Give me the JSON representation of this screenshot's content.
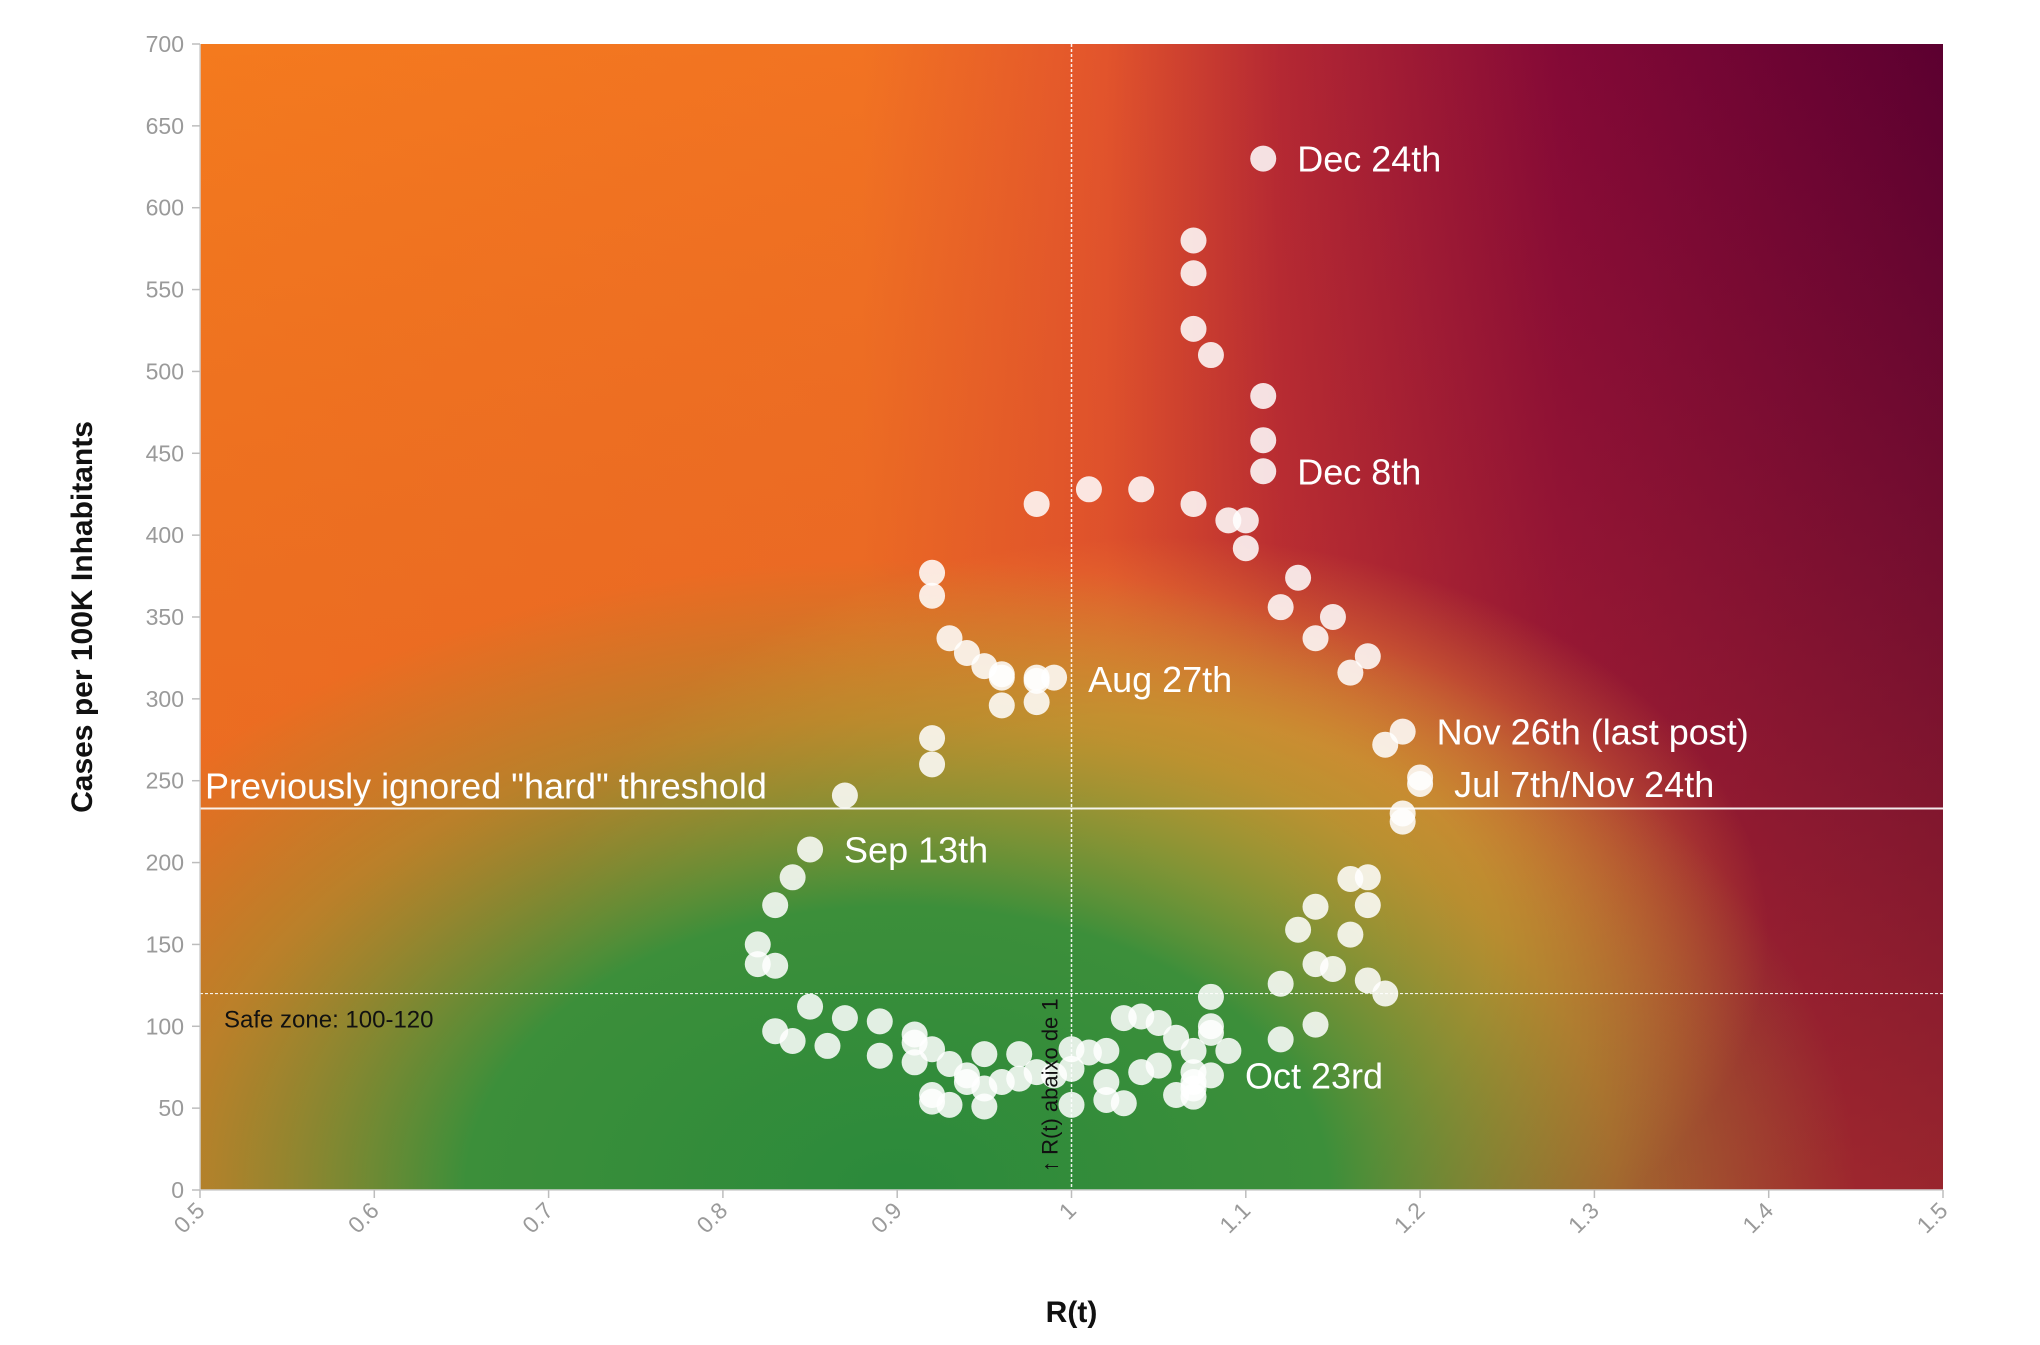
{
  "chart_data": {
    "type": "scatter",
    "xlabel": "R(t)",
    "ylabel": "Cases per 100K Inhabitants",
    "xlim": [
      0.5,
      1.5
    ],
    "ylim": [
      0,
      700
    ],
    "x_ticks": [
      "0.5",
      "0.6",
      "0.7",
      "0.8",
      "0.9",
      "1",
      "1.1",
      "1.2",
      "1.3",
      "1.4",
      "1.5"
    ],
    "y_ticks": [
      "0",
      "50",
      "100",
      "150",
      "200",
      "250",
      "300",
      "350",
      "400",
      "450",
      "500",
      "550",
      "600",
      "650",
      "700"
    ],
    "grid": false,
    "background": "gradient: green (low R, low cases) → yellow/orange → dark crimson (high R)",
    "colors": {
      "green": "#2e8a3a",
      "yellow": "#f7b23b",
      "orange": "#f47c20",
      "red": "#c0392b",
      "crimson": "#6b0030",
      "point": "#ffffff"
    },
    "reference_lines": [
      {
        "orientation": "horizontal",
        "y": 233,
        "label": "Previously ignored \"hard\" threshold"
      },
      {
        "orientation": "horizontal",
        "y": 120,
        "label": "Safe zone: 100-120"
      },
      {
        "orientation": "vertical",
        "x": 1.0,
        "label": "↑ R(t) abaixo de 1"
      }
    ],
    "annotations": [
      {
        "label": "Dec 24th",
        "x": 1.11,
        "y": 630
      },
      {
        "label": "Dec 8th",
        "x": 1.11,
        "y": 439
      },
      {
        "label": "Aug 27th",
        "x": 0.99,
        "y": 312
      },
      {
        "label": "Nov 26th (last post)",
        "x": 1.19,
        "y": 280
      },
      {
        "label": "Jul 7th/Nov 24th",
        "x": 1.2,
        "y": 248
      },
      {
        "label": "Sep 13th",
        "x": 0.85,
        "y": 208
      },
      {
        "label": "Oct 23rd",
        "x": 1.08,
        "y": 70
      }
    ],
    "series": [
      {
        "points": [
          [
            1.11,
            630
          ],
          [
            1.07,
            580
          ],
          [
            1.07,
            560
          ],
          [
            1.07,
            526
          ],
          [
            1.08,
            510
          ],
          [
            1.11,
            485
          ],
          [
            1.11,
            458
          ],
          [
            1.11,
            439
          ],
          [
            0.98,
            419
          ],
          [
            1.01,
            428
          ],
          [
            1.04,
            428
          ],
          [
            1.07,
            419
          ],
          [
            1.09,
            409
          ],
          [
            1.1,
            409
          ],
          [
            1.1,
            392
          ],
          [
            1.13,
            374
          ],
          [
            1.12,
            356
          ],
          [
            1.15,
            350
          ],
          [
            1.14,
            337
          ],
          [
            1.17,
            326
          ],
          [
            1.16,
            316
          ],
          [
            1.19,
            280
          ],
          [
            1.18,
            272
          ],
          [
            1.2,
            252
          ],
          [
            1.2,
            248
          ],
          [
            1.19,
            230
          ],
          [
            1.19,
            225
          ],
          [
            0.92,
            377
          ],
          [
            0.92,
            363
          ],
          [
            0.93,
            337
          ],
          [
            0.94,
            328
          ],
          [
            0.95,
            320
          ],
          [
            0.96,
            315
          ],
          [
            0.96,
            313
          ],
          [
            0.98,
            313
          ],
          [
            0.99,
            313
          ],
          [
            0.98,
            311
          ],
          [
            0.96,
            296
          ],
          [
            0.98,
            298
          ],
          [
            0.92,
            276
          ],
          [
            0.92,
            260
          ],
          [
            0.87,
            241
          ],
          [
            0.85,
            208
          ],
          [
            0.84,
            191
          ],
          [
            0.83,
            174
          ],
          [
            0.82,
            150
          ],
          [
            0.82,
            138
          ],
          [
            0.83,
            137
          ],
          [
            1.17,
            191
          ],
          [
            1.16,
            190
          ],
          [
            1.17,
            174
          ],
          [
            1.14,
            173
          ],
          [
            1.13,
            159
          ],
          [
            1.16,
            156
          ],
          [
            1.14,
            138
          ],
          [
            1.15,
            135
          ],
          [
            1.17,
            128
          ],
          [
            1.12,
            126
          ],
          [
            1.18,
            120
          ],
          [
            1.08,
            118
          ],
          [
            1.14,
            101
          ],
          [
            1.12,
            92
          ],
          [
            1.09,
            85
          ],
          [
            0.85,
            112
          ],
          [
            0.87,
            105
          ],
          [
            0.89,
            103
          ],
          [
            0.91,
            95
          ],
          [
            0.91,
            90
          ],
          [
            0.83,
            97
          ],
          [
            0.84,
            91
          ],
          [
            0.86,
            88
          ],
          [
            0.89,
            82
          ],
          [
            0.91,
            78
          ],
          [
            0.92,
            86
          ],
          [
            0.93,
            77
          ],
          [
            0.94,
            70
          ],
          [
            0.95,
            83
          ],
          [
            0.97,
            83
          ],
          [
            0.94,
            66
          ],
          [
            0.95,
            62
          ],
          [
            0.96,
            66
          ],
          [
            0.97,
            68
          ],
          [
            0.98,
            72
          ],
          [
            0.99,
            70
          ],
          [
            1.0,
            74
          ],
          [
            1.0,
            86
          ],
          [
            1.01,
            84
          ],
          [
            1.02,
            85
          ],
          [
            1.02,
            66
          ],
          [
            1.03,
            105
          ],
          [
            1.04,
            106
          ],
          [
            1.05,
            102
          ],
          [
            1.06,
            93
          ],
          [
            1.07,
            85
          ],
          [
            1.05,
            76
          ],
          [
            1.04,
            72
          ],
          [
            1.07,
            72
          ],
          [
            1.08,
            70
          ],
          [
            1.08,
            96
          ],
          [
            1.08,
            100
          ],
          [
            1.07,
            66
          ],
          [
            1.07,
            62
          ],
          [
            1.06,
            58
          ],
          [
            1.07,
            57
          ],
          [
            0.92,
            58
          ],
          [
            0.92,
            54
          ],
          [
            0.93,
            52
          ],
          [
            0.95,
            51
          ],
          [
            1.0,
            52
          ],
          [
            1.02,
            55
          ],
          [
            1.03,
            53
          ]
        ]
      }
    ]
  }
}
